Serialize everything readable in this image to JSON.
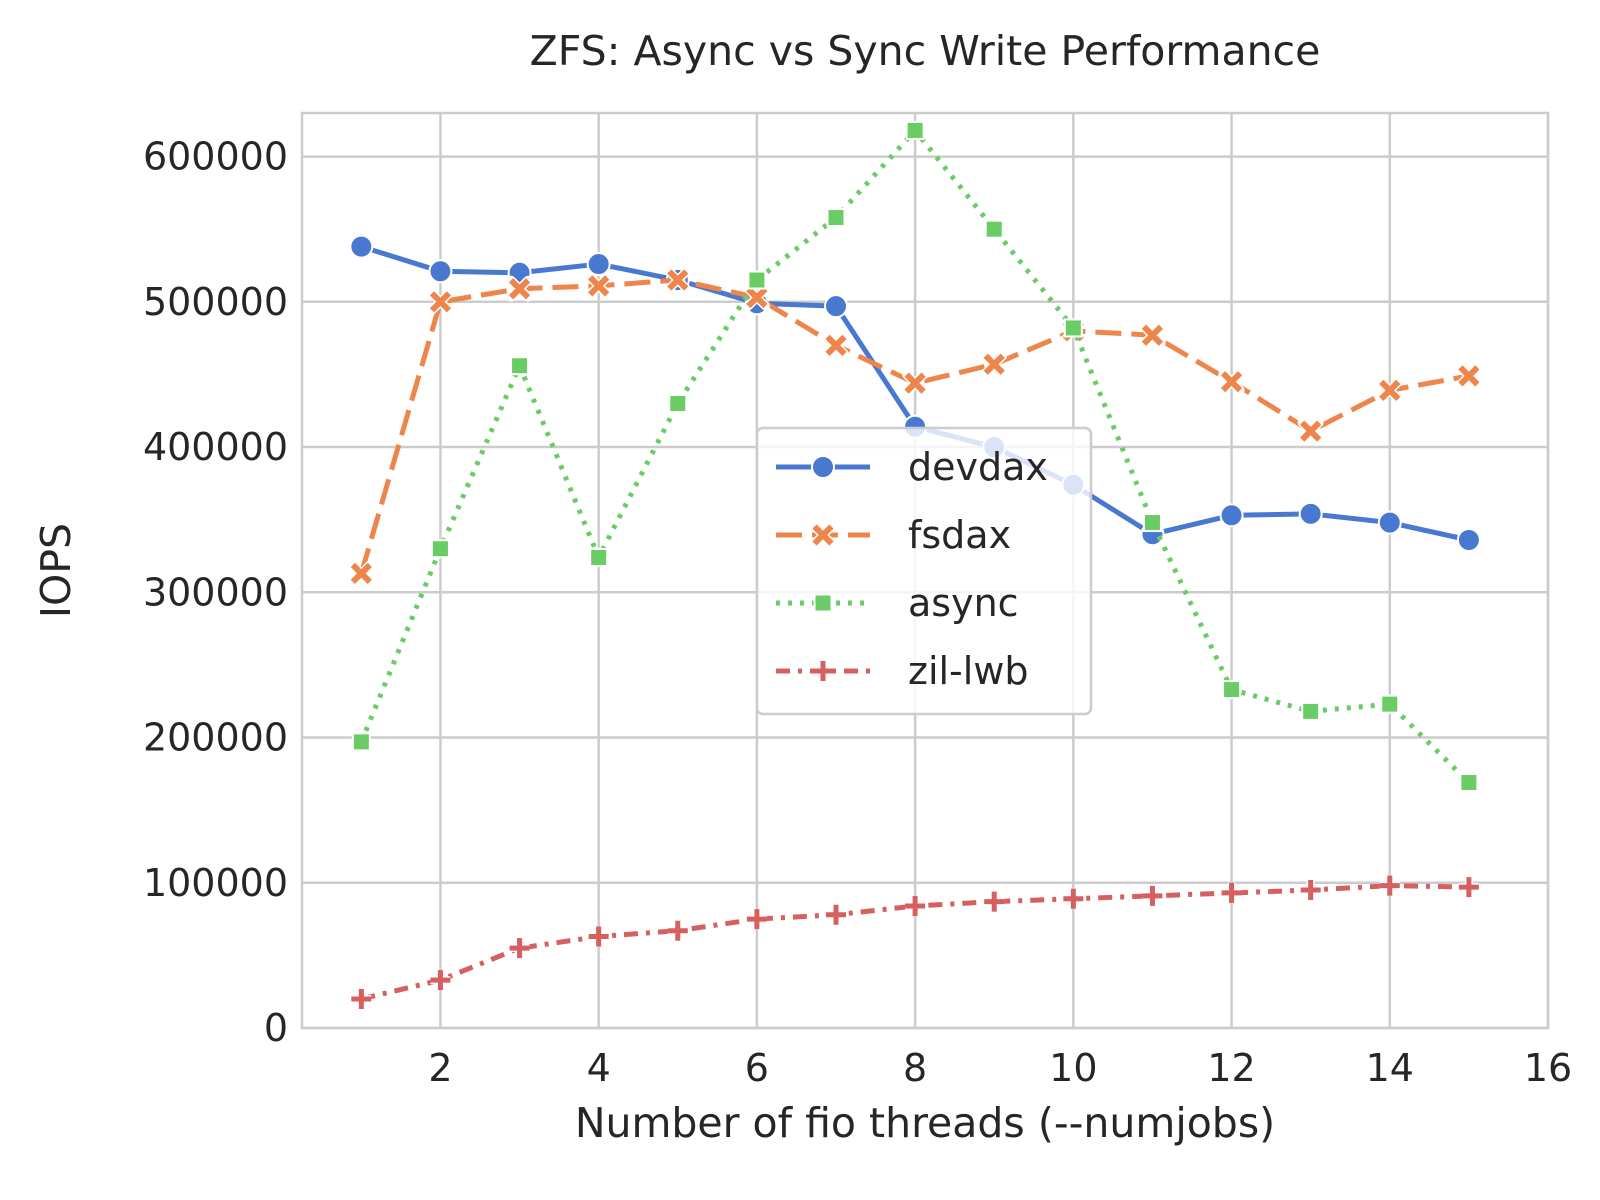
{
  "chart_data": {
    "type": "line",
    "title": "ZFS: Async vs Sync Write Performance",
    "xlabel": "Number of fio threads (--numjobs)",
    "ylabel": "IOPS",
    "xlim": [
      0.25,
      16
    ],
    "ylim": [
      0,
      630000
    ],
    "xticks": [
      2,
      4,
      6,
      8,
      10,
      12,
      14,
      16
    ],
    "yticks": [
      0,
      100000,
      200000,
      300000,
      400000,
      500000,
      600000
    ],
    "grid": true,
    "legend": "center",
    "x": [
      1,
      2,
      3,
      4,
      5,
      6,
      7,
      8,
      9,
      10,
      11,
      12,
      13,
      14,
      15
    ],
    "series": [
      {
        "name": "devdax",
        "color": "#4878d0",
        "marker": "circle",
        "dash": "solid",
        "values": [
          538000,
          521000,
          520000,
          526000,
          515000,
          499000,
          497000,
          414000,
          400000,
          374000,
          340000,
          353000,
          354000,
          348000,
          336000
        ]
      },
      {
        "name": "fsdax",
        "color": "#ee854a",
        "marker": "x",
        "dash": "dashed",
        "values": [
          313000,
          500000,
          509000,
          511000,
          515000,
          503000,
          470000,
          444000,
          457000,
          480000,
          477000,
          445000,
          411000,
          439000,
          449000
        ]
      },
      {
        "name": "async",
        "color": "#6acc64",
        "marker": "square",
        "dash": "dotted",
        "values": [
          197000,
          330000,
          456000,
          324000,
          430000,
          515000,
          558000,
          618000,
          550000,
          482000,
          348000,
          233000,
          218000,
          223000,
          169000
        ]
      },
      {
        "name": "zil-lwb",
        "color": "#d65f5f",
        "marker": "plus",
        "dash": "dashdot",
        "values": [
          20000,
          33000,
          55000,
          63000,
          67000,
          75000,
          78000,
          84000,
          87000,
          89000,
          91000,
          93000,
          95000,
          98000,
          97000
        ]
      }
    ]
  }
}
